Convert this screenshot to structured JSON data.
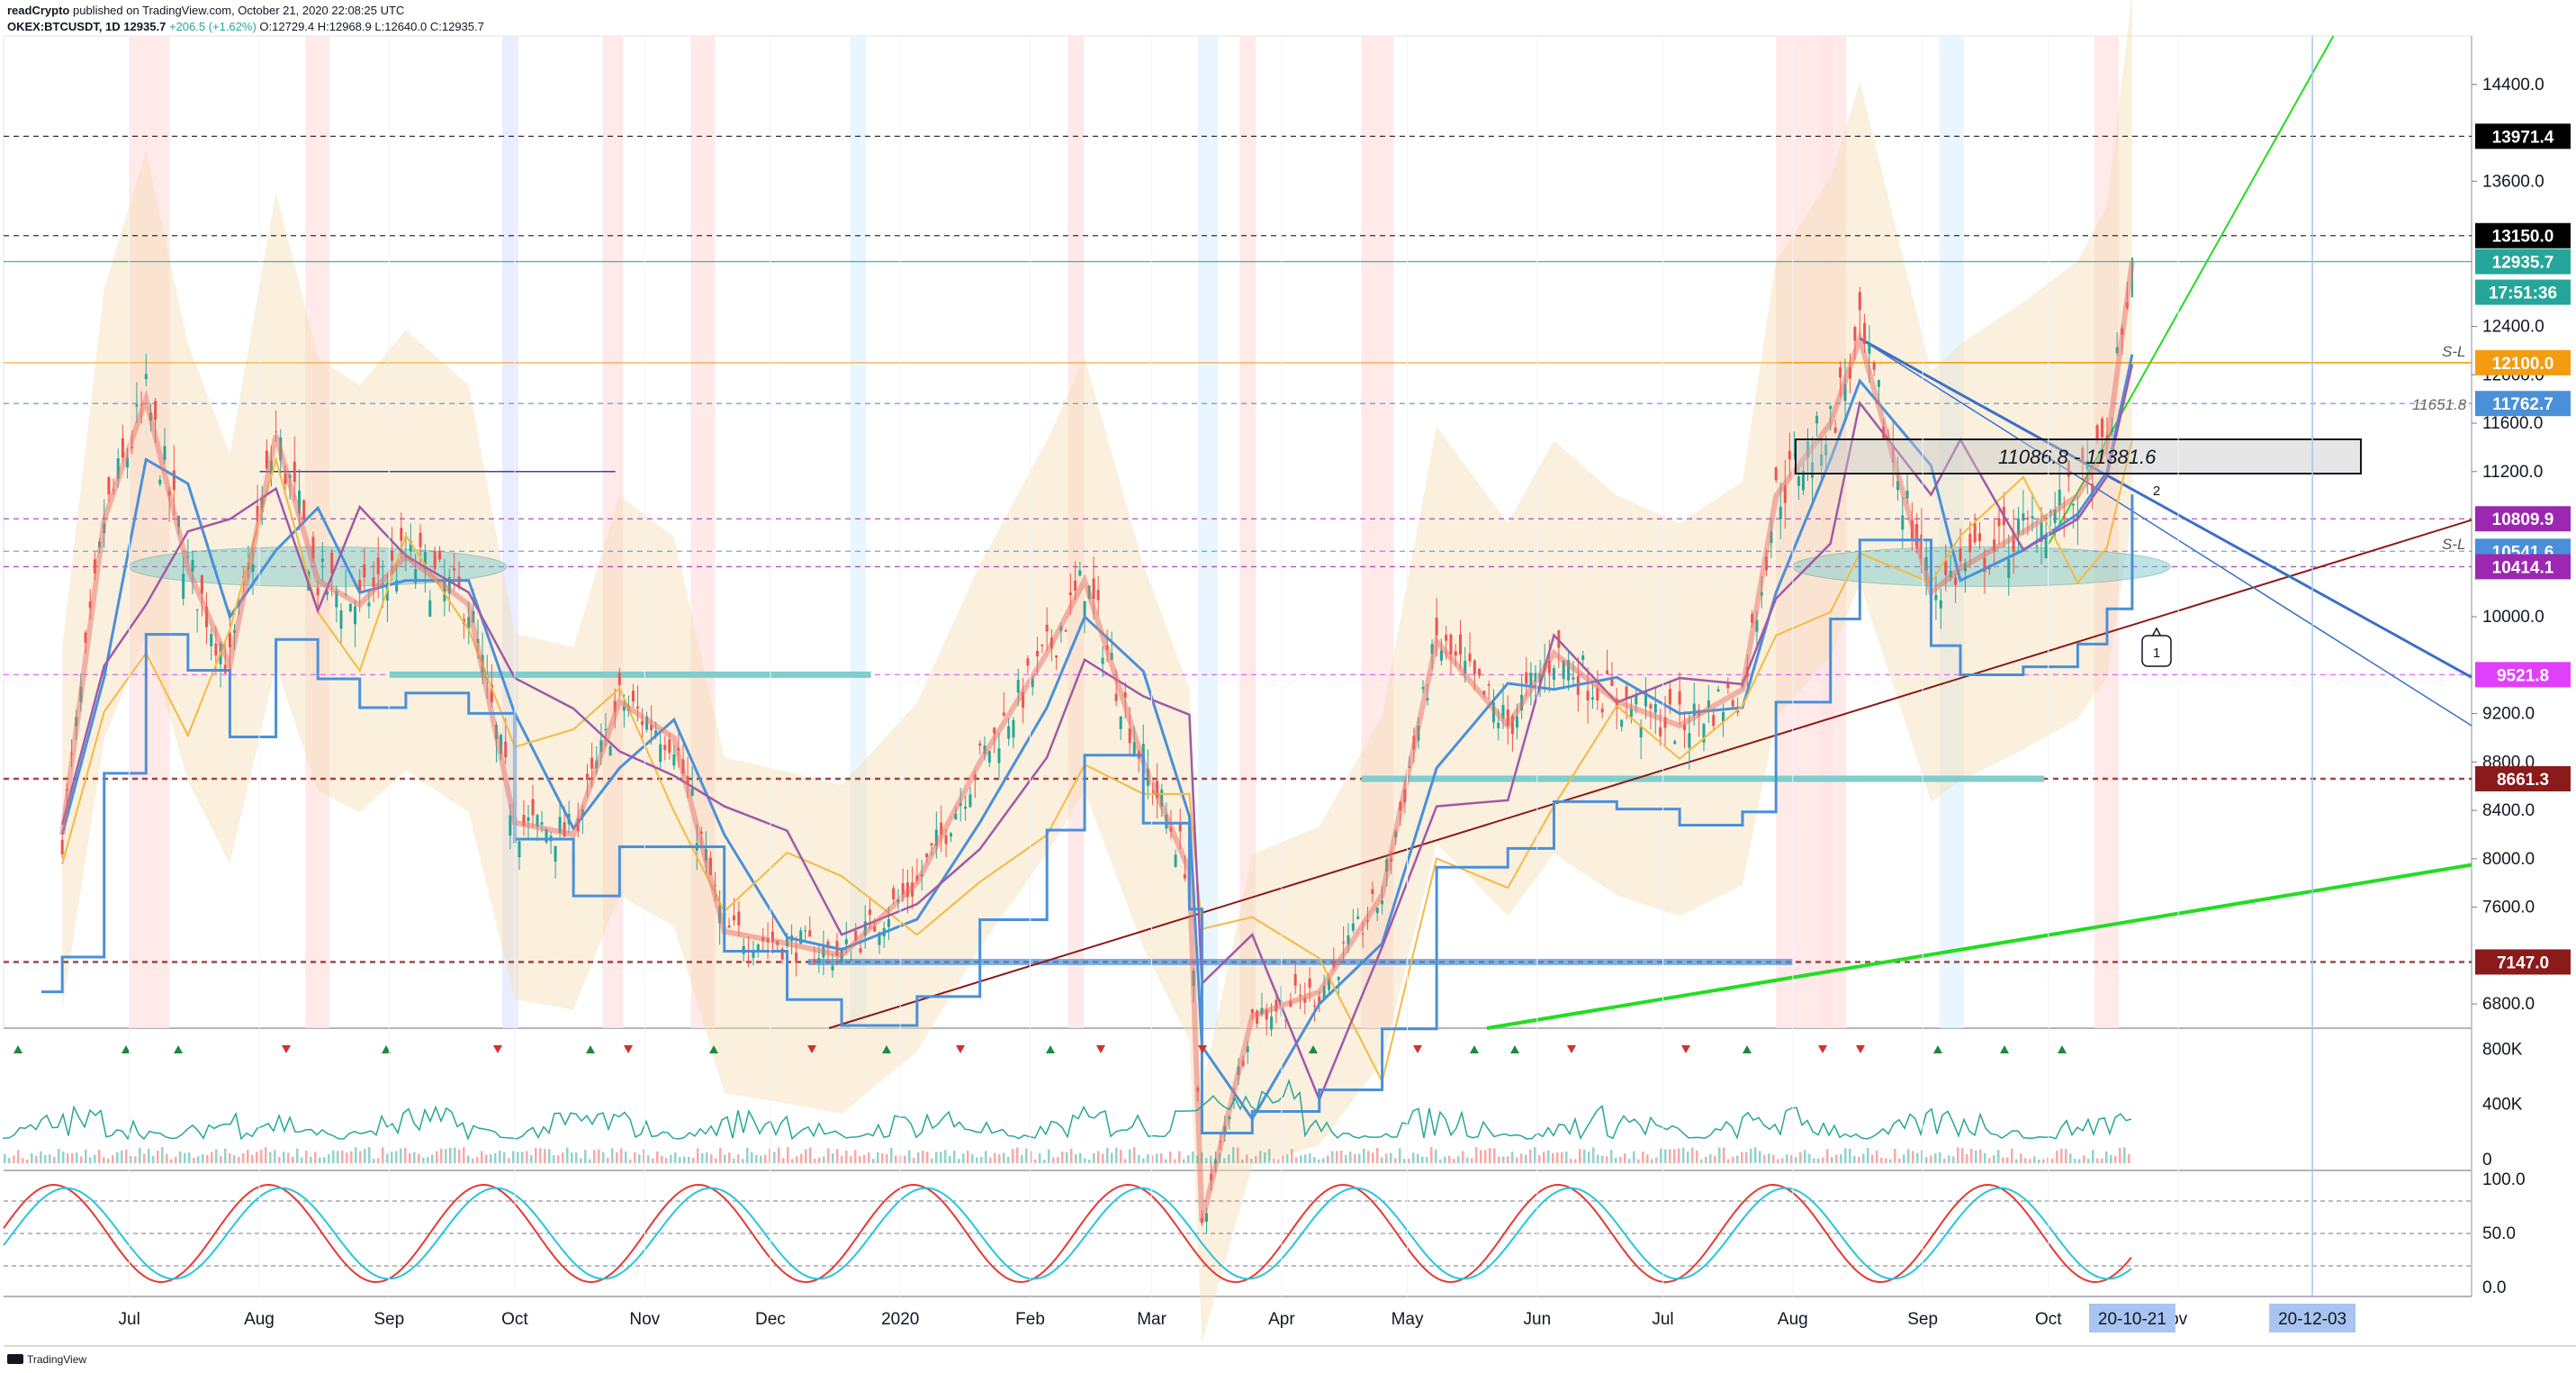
{
  "header": {
    "publisher": "readCrypto",
    "published_text": "published on TradingView.com, October 21, 2020 22:08:25 UTC",
    "symbol": "OKEX:BTCUSDT, 1D",
    "last": "12935.7",
    "change": "+206.5 (+1.62%)",
    "ohlc": [
      "O:12729.4",
      "H:12968.9",
      "L:12640.0",
      "C:12935.7"
    ]
  },
  "colors": {
    "up": "#26a69a",
    "down": "#ef5350",
    "accent_green": "#22dd22",
    "trend_brown": "#8b1a1a",
    "blue_line": "#4a90d9",
    "teal_zone": "#7fcdcd"
  },
  "chart_data": [
    {
      "type": "line",
      "title": "",
      "price_axis_ticks": [
        "14400.0",
        "13600.0",
        "12400.0",
        "12000.0",
        "11600.0",
        "11200.0",
        "10000.0",
        "9200.0",
        "8800.0",
        "8400.0",
        "8000.0",
        "7600.0",
        "6800.0"
      ],
      "time_axis_ticks": [
        "Jul",
        "Aug",
        "Sep",
        "Oct",
        "Nov",
        "Dec",
        "2020",
        "Feb",
        "Mar",
        "Apr",
        "May",
        "Jun",
        "Jul",
        "Aug",
        "Sep",
        "Oct",
        "ov"
      ],
      "ylim": [
        6600,
        14800
      ],
      "x": [
        "2019-06-15",
        "2019-06-25",
        "2019-07-05",
        "2019-07-15",
        "2019-07-25",
        "2019-08-05",
        "2019-08-15",
        "2019-08-25",
        "2019-09-05",
        "2019-09-20",
        "2019-10-01",
        "2019-10-15",
        "2019-10-26",
        "2019-11-08",
        "2019-11-20",
        "2019-12-05",
        "2019-12-18",
        "2020-01-05",
        "2020-01-20",
        "2020-02-05",
        "2020-02-14",
        "2020-02-28",
        "2020-03-10",
        "2020-03-13",
        "2020-03-25",
        "2020-04-10",
        "2020-04-25",
        "2020-05-08",
        "2020-05-25",
        "2020-06-05",
        "2020-06-20",
        "2020-07-05",
        "2020-07-20",
        "2020-07-28",
        "2020-08-10",
        "2020-08-17",
        "2020-09-03",
        "2020-09-10",
        "2020-09-25",
        "2020-10-08",
        "2020-10-15",
        "2020-10-21"
      ],
      "series": [
        {
          "values": [
            8200,
            10800,
            11800,
            10400,
            9600,
            11500,
            10300,
            10100,
            10500,
            10100,
            8300,
            8200,
            9300,
            9000,
            7400,
            7300,
            7200,
            7800,
            8800,
            9700,
            10300,
            8800,
            7900,
            5000,
            6700,
            6900,
            7700,
            9800,
            9100,
            9700,
            9300,
            9100,
            9400,
            11000,
            11600,
            12300,
            10200,
            10400,
            10700,
            11000,
            11400,
            12935.7
          ]
        }
      ],
      "price_labels": [
        {
          "value": 13971.4,
          "text": "13971.4",
          "bg": "#000000"
        },
        {
          "value": 13150.0,
          "text": "13150.0",
          "bg": "#000000"
        },
        {
          "value": 12935.7,
          "text": "12935.7",
          "bg": "#26a69a"
        },
        {
          "value": 12100.0,
          "text": "12100.0",
          "bg": "#f39c12"
        },
        {
          "value": 11762.7,
          "text": "11762.7",
          "bg": "#4a90d9"
        },
        {
          "value": 10809.9,
          "text": "10809.9",
          "bg": "#9c27b0"
        },
        {
          "value": 10541.6,
          "text": "10541.6",
          "bg": "#4a90d9"
        },
        {
          "value": 10414.1,
          "text": "10414.1",
          "bg": "#9c27b0"
        },
        {
          "value": 9521.8,
          "text": "9521.8",
          "bg": "#e040fb"
        },
        {
          "value": 8661.3,
          "text": "8661.3",
          "bg": "#8b1a1a"
        },
        {
          "value": 7147.0,
          "text": "7147.0",
          "bg": "#8b1a1a"
        }
      ],
      "countdown": "17:51:36",
      "annotations": {
        "range_box": "11086.8 - 11381.6",
        "level_text": "11651.8",
        "sl_label": "S-L",
        "marker_1": "1",
        "marker_2": "2"
      }
    },
    {
      "type": "area",
      "price_axis_ticks": [
        "800K",
        "400K",
        "0"
      ]
    },
    {
      "type": "line",
      "price_axis_ticks": [
        "100.0",
        "50.0",
        "0.0"
      ]
    }
  ],
  "time_axis_flags": [
    "20-10-21",
    "20-12-03"
  ],
  "footer": {
    "brand": "TradingView"
  }
}
